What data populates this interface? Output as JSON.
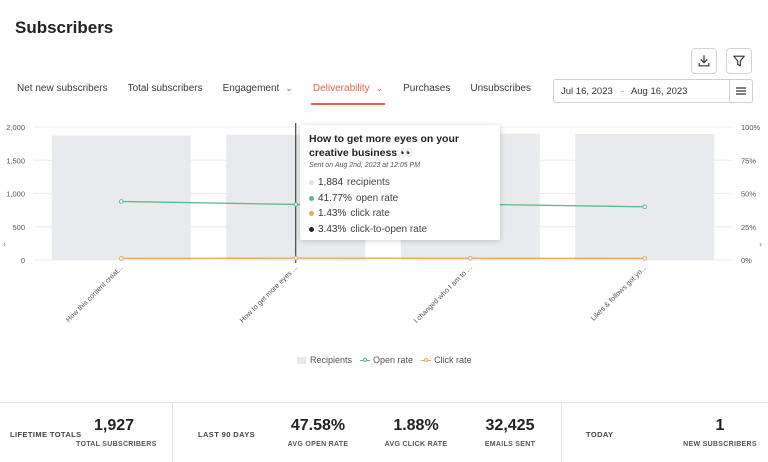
{
  "page": {
    "title": "Subscribers"
  },
  "toolbar": {
    "download_icon": "download-icon",
    "filter_icon": "filter-icon"
  },
  "tabs": [
    {
      "label": "Net new subscribers",
      "has_caret": false,
      "active": false
    },
    {
      "label": "Total subscribers",
      "has_caret": false,
      "active": false
    },
    {
      "label": "Engagement",
      "has_caret": true,
      "active": false
    },
    {
      "label": "Deliverability",
      "has_caret": true,
      "active": true
    },
    {
      "label": "Purchases",
      "has_caret": false,
      "active": false
    },
    {
      "label": "Unsubscribes",
      "has_caret": false,
      "active": false
    }
  ],
  "date_range": {
    "start": "Jul 16, 2023",
    "separator": "-",
    "end": "Aug 16, 2023"
  },
  "chart_data": {
    "type": "bar",
    "categories": [
      "How this content creat...",
      "How to get more eyes ...",
      "I changed who I am to ...",
      "Likes & follows got yo..."
    ],
    "series": [
      {
        "name": "Recipients",
        "type": "bar",
        "axis": "left",
        "values": [
          1870,
          1884,
          1900,
          1895
        ]
      },
      {
        "name": "Open rate",
        "type": "line",
        "axis": "right",
        "values": [
          44.0,
          41.77,
          42.0,
          40.0
        ]
      },
      {
        "name": "Click rate",
        "type": "line",
        "axis": "right",
        "values": [
          1.2,
          1.43,
          1.3,
          1.2
        ]
      }
    ],
    "left_axis": {
      "ticks": [
        "2,000",
        "1,500",
        "1,000",
        "500",
        "0"
      ],
      "min": 0,
      "max": 2000
    },
    "right_axis": {
      "ticks": [
        "100%",
        "75%",
        "50%",
        "25%",
        "0%"
      ],
      "min": 0,
      "max": 100
    },
    "colors": {
      "bars": "#e8eaed",
      "open_rate": "#5bb88a",
      "click_rate": "#e8a95a"
    },
    "legend_position": "bottom-center",
    "grid": true
  },
  "tooltip": {
    "title": "How to get more eyes on your creative business 👀",
    "subtitle": "Sent on Aug 2nd, 2023 at 12:05 PM",
    "rows": [
      {
        "value": "1,884",
        "label": "recipients",
        "color": "#e0e0e0"
      },
      {
        "value": "41.77%",
        "label": "open rate",
        "color": "#5bb88a"
      },
      {
        "value": "1.43%",
        "label": "click rate",
        "color": "#e8a95a"
      },
      {
        "value": "3.43%",
        "label": "click-to-open rate",
        "color": "#222222"
      }
    ]
  },
  "legend": {
    "recipients": "Recipients",
    "open_rate": "Open rate",
    "click_rate": "Click rate"
  },
  "footer": {
    "lifetime_label": "LIFETIME TOTALS",
    "total_subscribers": {
      "value": "1,927",
      "label": "TOTAL SUBSCRIBERS"
    },
    "last90_label": "LAST 90 DAYS",
    "avg_open_rate": {
      "value": "47.58%",
      "label": "AVG OPEN RATE"
    },
    "avg_click_rate": {
      "value": "1.88%",
      "label": "AVG CLICK RATE"
    },
    "emails_sent": {
      "value": "32,425",
      "label": "EMAILS SENT"
    },
    "today_label": "TODAY",
    "new_subscribers": {
      "value": "1",
      "label": "NEW SUBSCRIBERS"
    }
  }
}
